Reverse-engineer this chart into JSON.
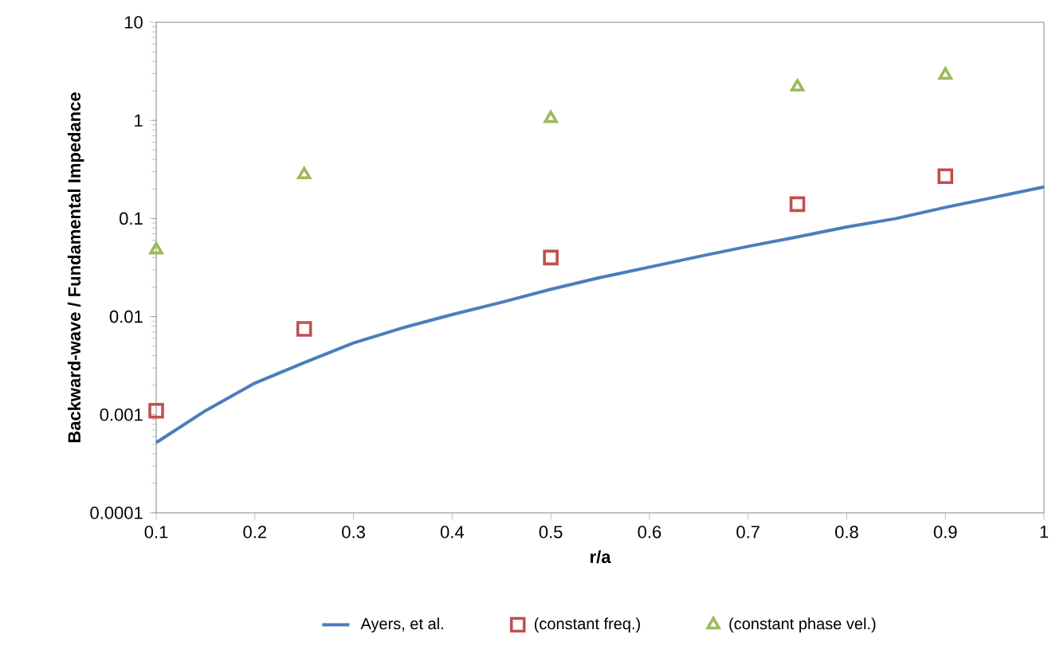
{
  "chart_data": {
    "type": "line",
    "xlabel": "r/a",
    "ylabel": "Backward-wave / Fundamental Impedance",
    "log": "y",
    "grid": false,
    "legend": "bottom",
    "xlim": [
      0.1,
      1
    ],
    "xticks": [
      0.1,
      0.2,
      0.3,
      0.4,
      0.5,
      0.6,
      0.7,
      0.8,
      0.9,
      1
    ],
    "ylim": [
      0.0001,
      10
    ],
    "yticks": [
      0.0001,
      0.001,
      0.01,
      0.1,
      1,
      10
    ],
    "series": [
      {
        "name": "Ayers, et al.",
        "color": "#4a7ebb",
        "marker": "none",
        "x": [
          0.1,
          0.15,
          0.2,
          0.25,
          0.3,
          0.35,
          0.4,
          0.45,
          0.5,
          0.55,
          0.6,
          0.65,
          0.7,
          0.75,
          0.8,
          0.85,
          0.9,
          0.95,
          1.0
        ],
        "values": [
          0.00052,
          0.0011,
          0.0021,
          0.0034,
          0.0054,
          0.0077,
          0.0105,
          0.014,
          0.019,
          0.025,
          0.032,
          0.041,
          0.052,
          0.065,
          0.082,
          0.1,
          0.13,
          0.165,
          0.21
        ]
      },
      {
        "name": "(constant freq.)",
        "type": "scatter",
        "color": "#c0504d",
        "marker": "square",
        "x": [
          0.1,
          0.25,
          0.5,
          0.75,
          0.9
        ],
        "values": [
          0.0011,
          0.0075,
          0.04,
          0.14,
          0.27
        ]
      },
      {
        "name": "(constant phase vel.)",
        "type": "scatter",
        "color": "#9bbb59",
        "marker": "triangle",
        "x": [
          0.1,
          0.25,
          0.5,
          0.75,
          0.9
        ],
        "values": [
          0.048,
          0.28,
          1.05,
          2.2,
          2.9
        ]
      }
    ]
  }
}
